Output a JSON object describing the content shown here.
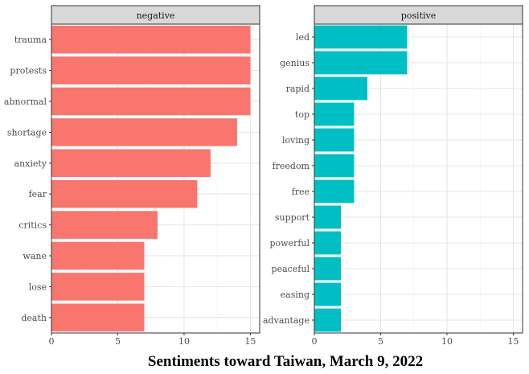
{
  "chart_data": {
    "type": "bar",
    "orientation": "horizontal",
    "title": "Sentiments toward Taiwan, March 9, 2022",
    "xlabel": "",
    "ylabel": "",
    "grid": true,
    "legend": "none",
    "facets": [
      {
        "name": "negative",
        "color": "#F8766D",
        "xlim": [
          0,
          15.7
        ],
        "xticks": [
          "0",
          "5",
          "10",
          "15"
        ],
        "categories": [
          "trauma",
          "protests",
          "abnormal",
          "shortage",
          "anxiety",
          "fear",
          "critics",
          "wane",
          "lose",
          "death"
        ],
        "values": [
          15,
          15,
          15,
          14,
          12,
          11,
          8,
          7,
          7,
          7
        ]
      },
      {
        "name": "positive",
        "color": "#00BFC4",
        "xlim": [
          0,
          15.7
        ],
        "xticks": [
          "0",
          "5",
          "10",
          "15"
        ],
        "categories": [
          "led",
          "genius",
          "rapid",
          "top",
          "loving",
          "freedom",
          "free",
          "support",
          "powerful",
          "peaceful",
          "easing",
          "advantage"
        ],
        "values": [
          7,
          7,
          4,
          3,
          3,
          3,
          3,
          2,
          2,
          2,
          2,
          2
        ]
      }
    ]
  }
}
